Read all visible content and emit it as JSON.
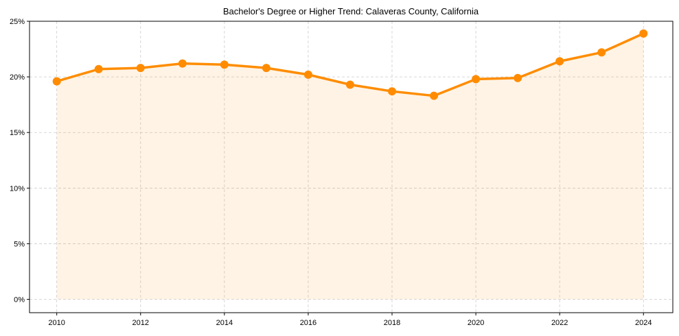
{
  "chart_data": {
    "type": "line",
    "title": "Bachelor's Degree or Higher Trend: Calaveras County, California",
    "xlabel": "",
    "ylabel": "",
    "x": [
      2010,
      2011,
      2012,
      2013,
      2014,
      2015,
      2016,
      2017,
      2018,
      2019,
      2020,
      2021,
      2022,
      2023,
      2024
    ],
    "series": [
      {
        "name": "Bachelor's Degree or Higher",
        "values": [
          19.6,
          20.7,
          20.8,
          21.2,
          21.1,
          20.8,
          20.2,
          19.3,
          18.7,
          18.3,
          19.8,
          19.9,
          21.4,
          22.2,
          23.9
        ],
        "color": "#ff8c00",
        "fill_color": "#ff8c00",
        "fill_opacity": 0.1,
        "marker": "circle"
      }
    ],
    "xticks": [
      2010,
      2012,
      2014,
      2016,
      2018,
      2020,
      2022,
      2024
    ],
    "xtick_labels": [
      "2010",
      "2012",
      "2014",
      "2016",
      "2018",
      "2020",
      "2022",
      "2024"
    ],
    "yticks": [
      0,
      5,
      10,
      15,
      20,
      25
    ],
    "ytick_labels": [
      "0%",
      "5%",
      "10%",
      "15%",
      "20%",
      "25%"
    ],
    "ylim": [
      -1.2,
      25
    ],
    "xlim": [
      2009.35,
      2024.7
    ],
    "grid": true,
    "legend": null
  }
}
